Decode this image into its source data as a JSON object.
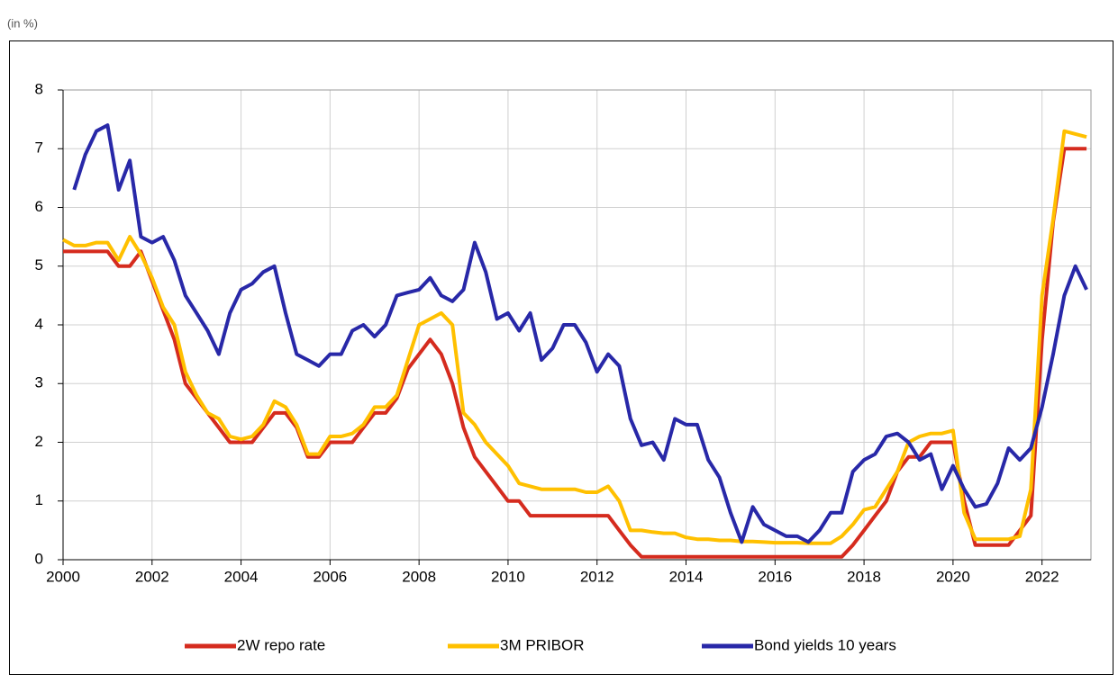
{
  "chart_data": {
    "type": "line",
    "ylabel": "(in %)",
    "x": [
      2000,
      2000.25,
      2000.5,
      2000.75,
      2001,
      2001.25,
      2001.5,
      2001.75,
      2002,
      2002.25,
      2002.5,
      2002.75,
      2003,
      2003.25,
      2003.5,
      2003.75,
      2004,
      2004.25,
      2004.5,
      2004.75,
      2005,
      2005.25,
      2005.5,
      2005.75,
      2006,
      2006.25,
      2006.5,
      2006.75,
      2007,
      2007.25,
      2007.5,
      2007.75,
      2008,
      2008.25,
      2008.5,
      2008.75,
      2009,
      2009.25,
      2009.5,
      2009.75,
      2010,
      2010.25,
      2010.5,
      2010.75,
      2011,
      2011.25,
      2011.5,
      2011.75,
      2012,
      2012.25,
      2012.5,
      2012.75,
      2013,
      2013.25,
      2013.5,
      2013.75,
      2014,
      2014.25,
      2014.5,
      2014.75,
      2015,
      2015.25,
      2015.5,
      2015.75,
      2016,
      2016.25,
      2016.5,
      2016.75,
      2017,
      2017.25,
      2017.5,
      2017.75,
      2018,
      2018.25,
      2018.5,
      2018.75,
      2019,
      2019.25,
      2019.5,
      2019.75,
      2020,
      2020.25,
      2020.5,
      2020.75,
      2021,
      2021.25,
      2021.5,
      2021.75,
      2022,
      2022.25,
      2022.5,
      2022.75,
      2023
    ],
    "series": [
      {
        "name": "2W repo rate",
        "color": "#d52b1e",
        "values": [
          5.25,
          5.25,
          5.25,
          5.25,
          5.25,
          5.0,
          5.0,
          5.25,
          4.75,
          4.25,
          3.75,
          3.0,
          2.75,
          2.5,
          2.25,
          2.0,
          2.0,
          2.0,
          2.25,
          2.5,
          2.5,
          2.25,
          1.75,
          1.75,
          2.0,
          2.0,
          2.0,
          2.25,
          2.5,
          2.5,
          2.75,
          3.25,
          3.5,
          3.75,
          3.5,
          3.0,
          2.25,
          1.75,
          1.5,
          1.25,
          1.0,
          1.0,
          0.75,
          0.75,
          0.75,
          0.75,
          0.75,
          0.75,
          0.75,
          0.75,
          0.5,
          0.25,
          0.05,
          0.05,
          0.05,
          0.05,
          0.05,
          0.05,
          0.05,
          0.05,
          0.05,
          0.05,
          0.05,
          0.05,
          0.05,
          0.05,
          0.05,
          0.05,
          0.05,
          0.05,
          0.05,
          0.25,
          0.5,
          0.75,
          1.0,
          1.5,
          1.75,
          1.75,
          2.0,
          2.0,
          2.0,
          1.0,
          0.25,
          0.25,
          0.25,
          0.25,
          0.5,
          0.75,
          3.75,
          5.75,
          7.0,
          7.0,
          7.0
        ]
      },
      {
        "name": "3M PRIBOR",
        "color": "#ffc000",
        "values": [
          5.45,
          5.35,
          5.35,
          5.4,
          5.4,
          5.1,
          5.5,
          5.2,
          4.8,
          4.3,
          4.0,
          3.2,
          2.8,
          2.5,
          2.4,
          2.1,
          2.05,
          2.1,
          2.3,
          2.7,
          2.6,
          2.3,
          1.8,
          1.8,
          2.1,
          2.1,
          2.15,
          2.3,
          2.6,
          2.6,
          2.8,
          3.4,
          4.0,
          4.1,
          4.2,
          4.0,
          2.5,
          2.3,
          2.0,
          1.8,
          1.6,
          1.3,
          1.25,
          1.2,
          1.2,
          1.2,
          1.2,
          1.15,
          1.15,
          1.25,
          1.0,
          0.5,
          0.5,
          0.47,
          0.45,
          0.45,
          0.38,
          0.35,
          0.35,
          0.33,
          0.33,
          0.31,
          0.31,
          0.3,
          0.29,
          0.29,
          0.29,
          0.28,
          0.28,
          0.28,
          0.4,
          0.6,
          0.85,
          0.9,
          1.2,
          1.5,
          2.0,
          2.1,
          2.15,
          2.15,
          2.2,
          0.8,
          0.35,
          0.35,
          0.35,
          0.35,
          0.4,
          1.2,
          4.5,
          5.8,
          7.3,
          7.25,
          7.2
        ]
      },
      {
        "name": "Bond yields 10 years",
        "color": "#2828a8",
        "values": [
          null,
          6.3,
          6.9,
          7.3,
          7.4,
          6.3,
          6.8,
          5.5,
          5.4,
          5.5,
          5.1,
          4.5,
          4.2,
          3.9,
          3.5,
          4.2,
          4.6,
          4.7,
          4.9,
          5.0,
          4.2,
          3.5,
          3.4,
          3.3,
          3.5,
          3.5,
          3.9,
          4.0,
          3.8,
          4.0,
          4.5,
          4.55,
          4.6,
          4.8,
          4.5,
          4.4,
          4.6,
          5.4,
          4.9,
          4.1,
          4.2,
          3.9,
          4.2,
          3.4,
          3.6,
          4.0,
          4.0,
          3.7,
          3.2,
          3.5,
          3.3,
          2.4,
          1.95,
          2.0,
          1.7,
          2.4,
          2.3,
          2.3,
          1.7,
          1.4,
          0.8,
          0.3,
          0.9,
          0.6,
          0.5,
          0.4,
          0.4,
          0.3,
          0.5,
          0.8,
          0.8,
          1.5,
          1.7,
          1.8,
          2.1,
          2.15,
          2.0,
          1.7,
          1.8,
          1.2,
          1.6,
          1.2,
          0.9,
          0.95,
          1.3,
          1.9,
          1.7,
          1.9,
          2.6,
          3.5,
          4.5,
          5.0,
          4.6
        ]
      }
    ],
    "xlim": [
      2000,
      2023.1
    ],
    "xticks": [
      2000,
      2002,
      2004,
      2006,
      2008,
      2010,
      2012,
      2014,
      2016,
      2018,
      2020,
      2022
    ],
    "ylim": [
      0,
      8
    ],
    "yticks": [
      0,
      1,
      2,
      3,
      4,
      5,
      6,
      7,
      8
    ],
    "grid": true
  }
}
